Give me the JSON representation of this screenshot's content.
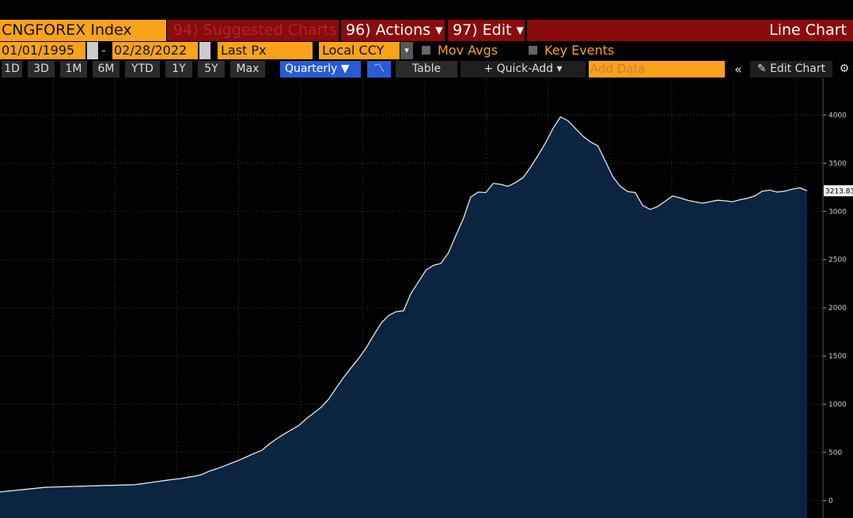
{
  "toolbar": {
    "security": "CNGFOREX Index",
    "suggested": "94) Suggested Charts",
    "actions": "96) Actions ▾",
    "edit": "97) Edit ▾",
    "view_name": "Line Chart",
    "start_date": "01/01/1995",
    "dash": "-",
    "end_date": "02/28/2022",
    "field": "Last Px",
    "currency": "Local CCY",
    "mov_avgs": "Mov Avgs",
    "key_events": "Key Events",
    "periods": [
      "1D",
      "3D",
      "1M",
      "6M",
      "YTD",
      "1Y",
      "5Y",
      "Max"
    ],
    "frequency": "Quarterly ▼",
    "table": "Table",
    "quick_add": "+ Quick-Add ▾",
    "add_data": "Add Data",
    "edit_chart": "Edit Chart"
  },
  "chart_data": {
    "type": "area",
    "color": "#e8e8e8",
    "fill": "#0b2440",
    "grid": true,
    "values": [
      90,
      98,
      106,
      114,
      122,
      130,
      138,
      141,
      143,
      146,
      148,
      150,
      152,
      155,
      157,
      159,
      161,
      163,
      165,
      175,
      186,
      197,
      208,
      219,
      227,
      240,
      253,
      270,
      306,
      330,
      360,
      390,
      420,
      455,
      490,
      520,
      585,
      640,
      690,
      735,
      780,
      850,
      910,
      970,
      1055,
      1170,
      1280,
      1380,
      1475,
      1585,
      1715,
      1840,
      1920,
      1960,
      1970,
      2150,
      2270,
      2390,
      2440,
      2460,
      2570,
      2750,
      2925,
      3150,
      3200,
      3195,
      3290,
      3280,
      3260,
      3300,
      3350,
      3460,
      3580,
      3710,
      3860,
      3980,
      3940,
      3860,
      3780,
      3720,
      3680,
      3520,
      3360,
      3260,
      3205,
      3195,
      3060,
      3020,
      3050,
      3105,
      3160,
      3140,
      3115,
      3100,
      3085,
      3100,
      3115,
      3110,
      3100,
      3120,
      3135,
      3160,
      3210,
      3220,
      3200,
      3210,
      3230,
      3245,
      3213.83
    ],
    "ylim": [
      -180,
      4380
    ],
    "yticks": [
      0,
      500,
      1000,
      1500,
      2000,
      2500,
      3000,
      3500,
      4000
    ]
  }
}
